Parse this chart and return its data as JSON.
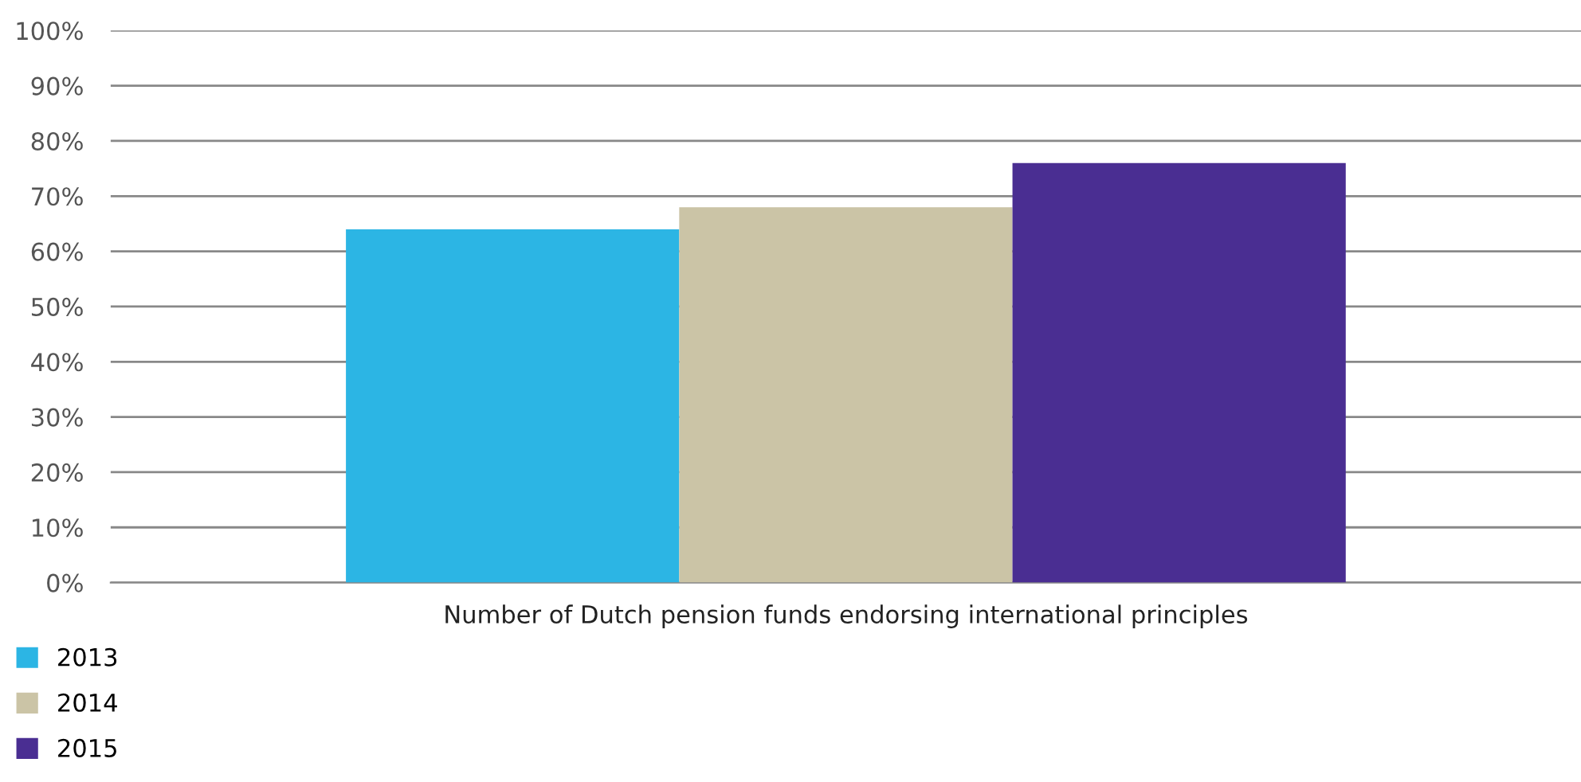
{
  "chart_data": {
    "type": "bar",
    "categories": [
      "Number of Dutch pension funds endorsing international principles"
    ],
    "series": [
      {
        "name": "2013",
        "color": "#2cb5e4",
        "values": [
          64
        ]
      },
      {
        "name": "2014",
        "color": "#cbc4a6",
        "values": [
          68
        ]
      },
      {
        "name": "2015",
        "color": "#4a2e92",
        "values": [
          76
        ]
      }
    ],
    "ylim": [
      0,
      100
    ],
    "yticks": [
      {
        "value": 0,
        "label": "0%"
      },
      {
        "value": 10,
        "label": "10%"
      },
      {
        "value": 20,
        "label": "20%"
      },
      {
        "value": 30,
        "label": "30%"
      },
      {
        "value": 40,
        "label": "40%"
      },
      {
        "value": 50,
        "label": "50%"
      },
      {
        "value": 60,
        "label": "60%"
      },
      {
        "value": 70,
        "label": "70%"
      },
      {
        "value": 80,
        "label": "80%"
      },
      {
        "value": 90,
        "label": "90%"
      },
      {
        "value": 100,
        "label": "100%"
      }
    ],
    "grid": "y",
    "legend": "bottom left"
  }
}
